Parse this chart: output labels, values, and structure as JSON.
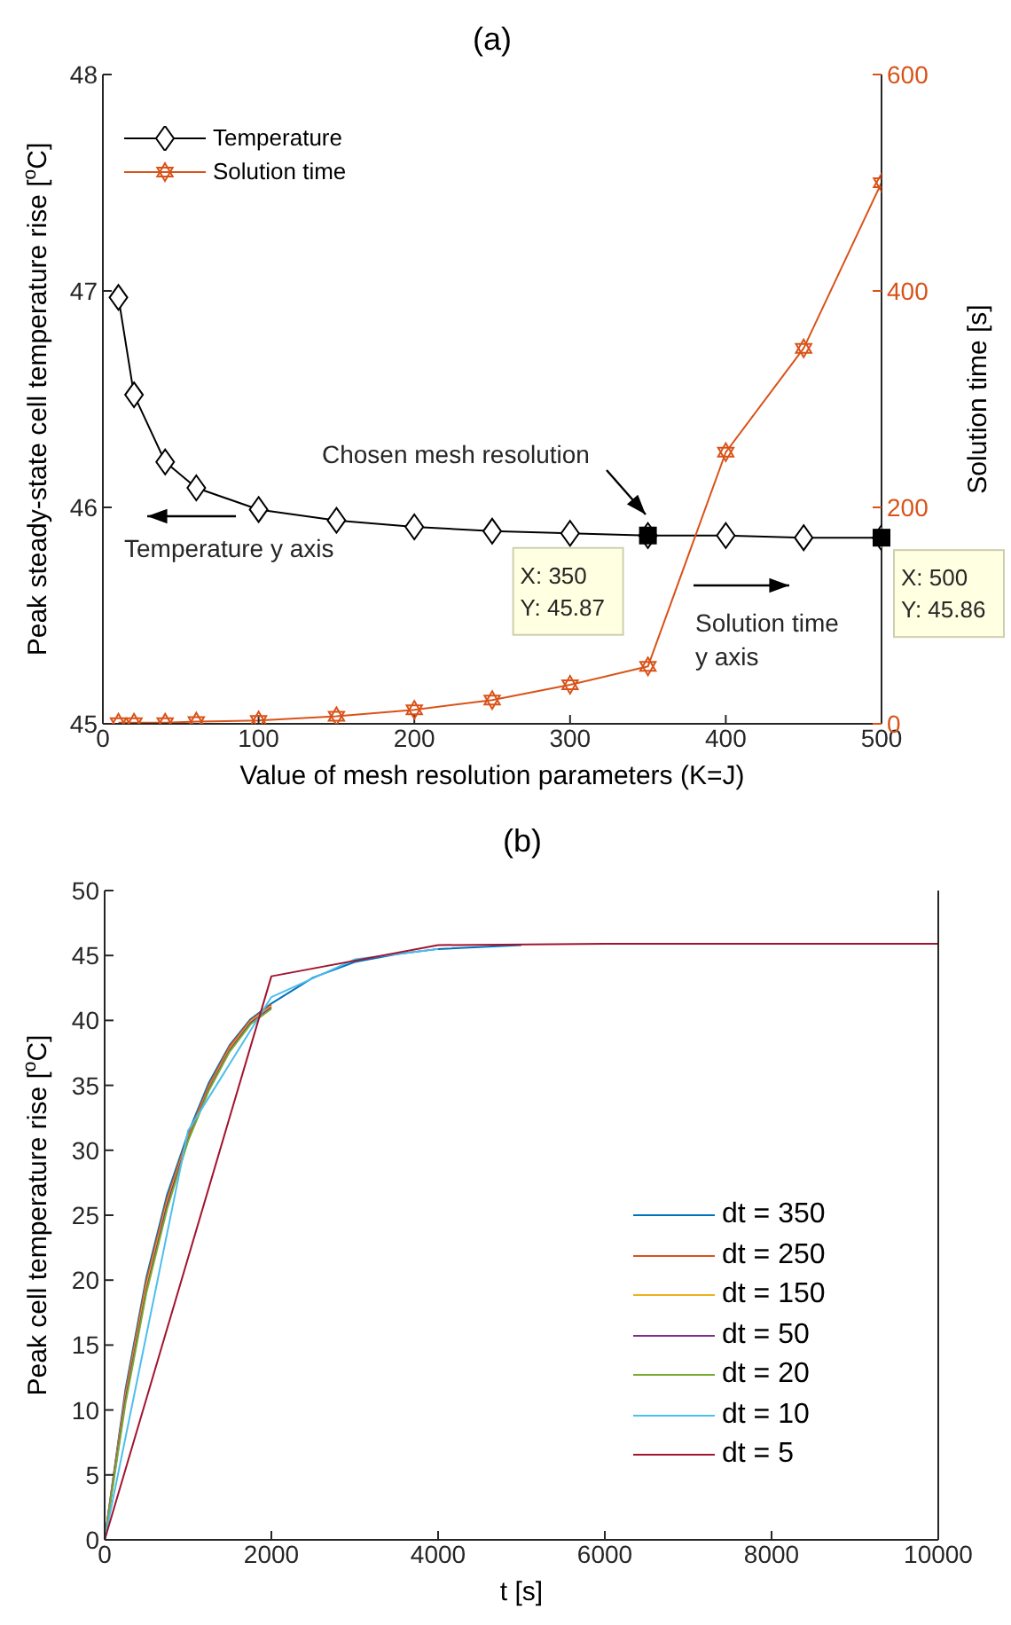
{
  "chart_data": [
    {
      "type": "line",
      "title": "(a)",
      "xlabel": "Value of mesh resolution parameters (K=J)",
      "ylabel": "Peak steady-state cell temperature rise [$^{o}$C]",
      "y2label": "Solution time [s]",
      "xlim": [
        0,
        500
      ],
      "xticks": [
        0,
        100,
        200,
        300,
        400,
        500
      ],
      "ylim": [
        45,
        48
      ],
      "yticks": [
        45,
        46,
        47,
        48
      ],
      "y2lim": [
        0,
        600
      ],
      "y2ticks": [
        0,
        200,
        400,
        600
      ],
      "legend": "top left",
      "series": [
        {
          "name": "Temperature",
          "color": "#000000",
          "marker": "diamond",
          "x": [
            10,
            20,
            40,
            60,
            100,
            150,
            200,
            250,
            300,
            350,
            400,
            450,
            500
          ],
          "values": [
            46.97,
            46.52,
            46.21,
            46.09,
            45.99,
            45.94,
            45.91,
            45.89,
            45.88,
            45.87,
            45.87,
            45.86,
            45.86
          ]
        },
        {
          "name": "Solution time",
          "color": "#d95319",
          "marker": "star",
          "axis": "y2",
          "x": [
            10,
            20,
            40,
            60,
            100,
            150,
            200,
            250,
            300,
            350,
            400,
            450,
            500
          ],
          "values": [
            1,
            1,
            1,
            2,
            3,
            7,
            13,
            22,
            36,
            53,
            251,
            347,
            500
          ]
        }
      ],
      "annotations": [
        {
          "text": "X: 350\nY: 45.87",
          "x": 350,
          "y": 45.87
        },
        {
          "text": "X: 500\nY: 45.86",
          "x": 500,
          "y": 45.86
        },
        "Chosen mesh resolution",
        "Temperature y axis",
        "Solution time\ny axis"
      ]
    },
    {
      "type": "line",
      "title": "(b)",
      "xlabel": "t [s]",
      "ylabel": "Peak cell temperature rise [$^{o}$C]",
      "xlim": [
        0,
        10000
      ],
      "xticks": [
        0,
        2000,
        4000,
        6000,
        8000,
        10000
      ],
      "ylim": [
        0,
        50
      ],
      "yticks": [
        0,
        5,
        10,
        15,
        20,
        25,
        30,
        35,
        40,
        45,
        50
      ],
      "legend": "bottom right",
      "series": [
        {
          "name": "dt = 350",
          "color": "#0072bd",
          "x": [
            0,
            250,
            500,
            750,
            1000,
            1250,
            1500,
            1750,
            2000,
            2500,
            3000,
            3500,
            4000,
            5000
          ],
          "values": [
            0,
            11.6,
            20.2,
            26.6,
            31.3,
            35.2,
            38.1,
            40.1,
            41.3,
            43.3,
            44.5,
            45.1,
            45.5,
            45.8
          ]
        },
        {
          "name": "dt = 250",
          "color": "#d95319",
          "x": [
            0,
            250,
            500,
            750,
            1000,
            1250,
            1500,
            1750,
            2000
          ],
          "values": [
            0,
            11.3,
            19.9,
            26.3,
            31.1,
            35,
            38,
            40,
            41.2
          ]
        },
        {
          "name": "dt = 150",
          "color": "#edb120",
          "x": [
            0,
            250,
            500,
            750,
            1000,
            1250,
            1500,
            1750,
            2000
          ],
          "values": [
            0,
            11,
            19.5,
            26,
            30.9,
            34.8,
            37.8,
            39.9,
            41.1
          ]
        },
        {
          "name": "dt = 50",
          "color": "#7e2f8e",
          "x": [
            0,
            250,
            500,
            750,
            1000,
            1250,
            1500,
            1750,
            2000
          ],
          "values": [
            0,
            10.8,
            19.2,
            25.8,
            30.8,
            34.7,
            37.7,
            39.8,
            41
          ]
        },
        {
          "name": "dt = 20",
          "color": "#77ac30",
          "x": [
            0,
            250,
            500,
            750,
            1000,
            1250,
            1500,
            1750,
            2000
          ],
          "values": [
            0,
            10.5,
            19,
            25.5,
            30.7,
            34.6,
            37.6,
            39.7,
            40.9
          ]
        },
        {
          "name": "dt = 10",
          "color": "#4dbeee",
          "x": [
            0,
            1000,
            2000,
            3000,
            4000
          ],
          "values": [
            0,
            31.5,
            41.8,
            44.7,
            45.5
          ]
        },
        {
          "name": "dt = 5",
          "color": "#a2142f",
          "x": [
            0,
            2000,
            4000,
            6000,
            8000,
            10000
          ],
          "values": [
            0,
            43.4,
            45.8,
            45.9,
            45.9,
            45.9
          ]
        }
      ]
    }
  ]
}
